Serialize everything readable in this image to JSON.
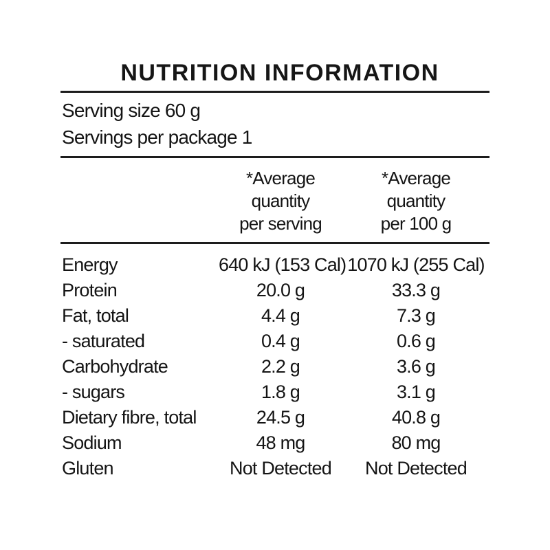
{
  "panel": {
    "title": "NUTRITION INFORMATION",
    "serving_size": "Serving size 60 g",
    "servings_per_package": "Servings per package 1",
    "columns": [
      {
        "lines": [
          "*Average",
          "quantity",
          "per serving"
        ]
      },
      {
        "lines": [
          "*Average",
          "quantity",
          "per 100 g"
        ]
      }
    ],
    "rows": [
      {
        "nutrient": "Energy",
        "per_serving": "640 kJ (153 Cal)",
        "per_100g": "1070 kJ (255 Cal)"
      },
      {
        "nutrient": "Protein",
        "per_serving": "20.0 g",
        "per_100g": "33.3 g"
      },
      {
        "nutrient": "Fat, total",
        "per_serving": "4.4 g",
        "per_100g": "7.3 g"
      },
      {
        "nutrient": "- saturated",
        "per_serving": "0.4 g",
        "per_100g": "0.6 g"
      },
      {
        "nutrient": "Carbohydrate",
        "per_serving": "2.2 g",
        "per_100g": "3.6 g"
      },
      {
        "nutrient": "- sugars",
        "per_serving": "1.8 g",
        "per_100g": "3.1 g"
      },
      {
        "nutrient": "Dietary fibre, total",
        "per_serving": "24.5 g",
        "per_100g": "40.8 g"
      },
      {
        "nutrient": "Sodium",
        "per_serving": "48 mg",
        "per_100g": "80 mg"
      },
      {
        "nutrient": "Gluten",
        "per_serving": "Not Detected",
        "per_100g": "Not Detected"
      }
    ],
    "text_color": "#141414",
    "rule_color": "#1d1d1d",
    "background_color": "#ffffff"
  }
}
